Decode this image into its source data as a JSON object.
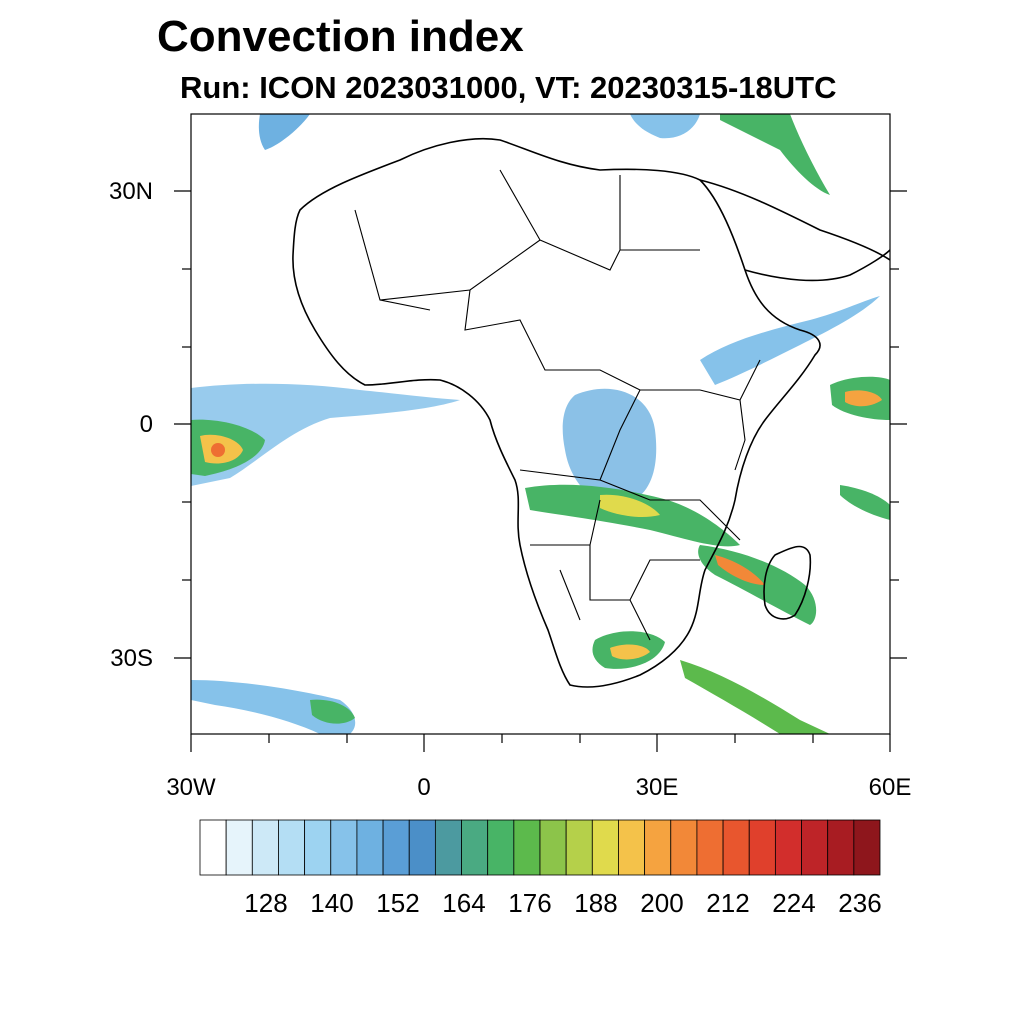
{
  "title": "Convection index",
  "subtitle": "Run: ICON 2023031000,  VT: 20230315-18UTC",
  "axes": {
    "lat_labels": [
      "30N",
      "0",
      "30S"
    ],
    "lon_labels": [
      "30W",
      "0",
      "30E",
      "60E"
    ]
  },
  "colorbar": {
    "labels": [
      "128",
      "140",
      "152",
      "164",
      "176",
      "188",
      "200",
      "212",
      "224",
      "236"
    ],
    "colors": [
      "#ffffff",
      "#e6f4fb",
      "#cde9f7",
      "#b4def4",
      "#9dd3f1",
      "#86c2ea",
      "#6eb1e1",
      "#5a9ed6",
      "#4b8fc8",
      "#4c9aa0",
      "#4aaa82",
      "#48b466",
      "#5cba4c",
      "#8cc44a",
      "#b5d04a",
      "#e0da4c",
      "#f4c24a",
      "#f5a340",
      "#f28838",
      "#ee6e32",
      "#e8562e",
      "#e0402c",
      "#d22e2c",
      "#be2428",
      "#a81c22",
      "#8e161c"
    ]
  },
  "overlay_colors": {
    "border": "#000000",
    "coast": "#000000"
  }
}
